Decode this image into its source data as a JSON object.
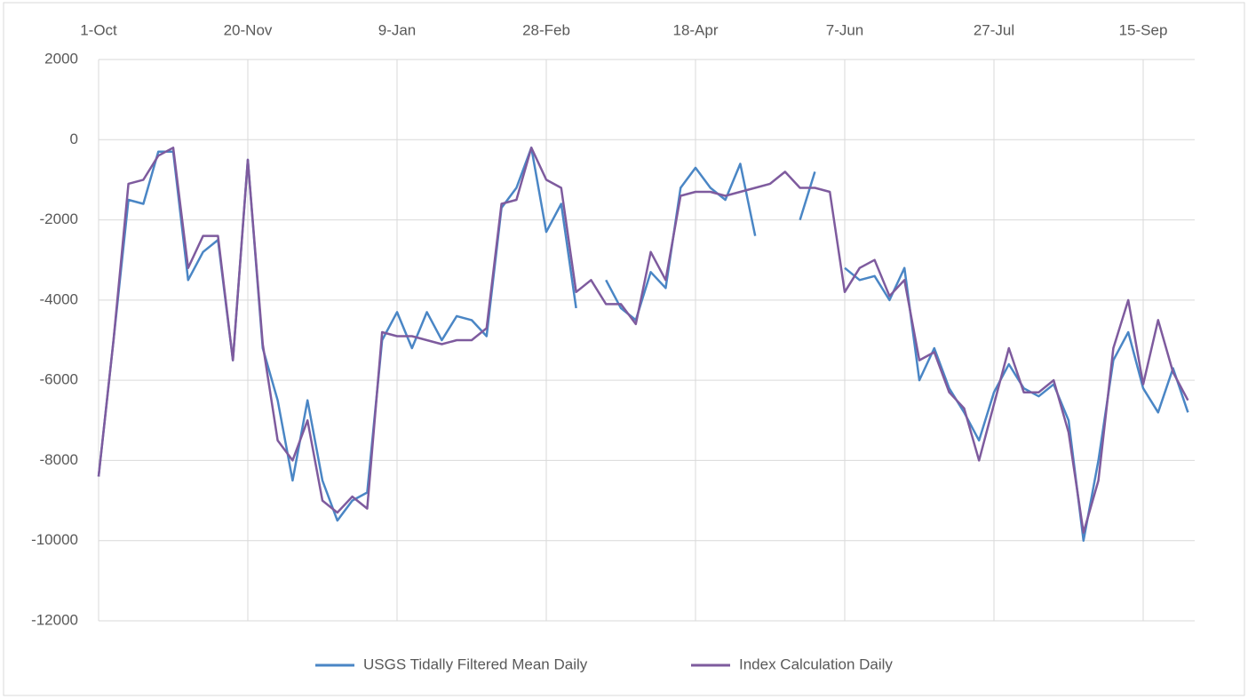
{
  "chart_data": {
    "type": "line",
    "categories": [
      "1-Oct",
      null,
      null,
      null,
      null,
      null,
      null,
      null,
      null,
      null,
      "20-Nov",
      null,
      null,
      null,
      null,
      null,
      null,
      null,
      null,
      null,
      "9-Jan",
      null,
      null,
      null,
      null,
      null,
      null,
      null,
      null,
      null,
      "28-Feb",
      null,
      null,
      null,
      null,
      null,
      null,
      null,
      null,
      null,
      "18-Apr",
      null,
      null,
      null,
      null,
      null,
      null,
      null,
      null,
      null,
      "7-Jun",
      null,
      null,
      null,
      null,
      null,
      null,
      null,
      null,
      null,
      "27-Jul",
      null,
      null,
      null,
      null,
      null,
      null,
      null,
      null,
      null,
      "15-Sep",
      null,
      null,
      null
    ],
    "series": [
      {
        "name": "USGS Tidally Filtered Mean Daily",
        "color": "#4a86c5",
        "values": [
          -8400,
          -5000,
          -1500,
          -1600,
          -300,
          -300,
          -3500,
          -2800,
          -2500,
          -5500,
          -500,
          -5200,
          -6500,
          -8500,
          -6500,
          -8500,
          -9500,
          -9000,
          -8800,
          -5000,
          -4300,
          -5200,
          -4300,
          -5000,
          -4400,
          -4500,
          -4900,
          -1700,
          -1200,
          -200,
          -2300,
          -1600,
          -4200,
          null,
          -3500,
          -4200,
          -4500,
          -3300,
          -3700,
          -1200,
          -700,
          -1200,
          -1500,
          -600,
          -2400,
          null,
          null,
          -2000,
          -800,
          null,
          -3200,
          -3500,
          -3400,
          -4000,
          -3200,
          -6000,
          -5200,
          -6200,
          -6800,
          -7500,
          -6300,
          -5600,
          -6200,
          -6400,
          -6100,
          -7000,
          -10000,
          -8000,
          -5500,
          -4800,
          -6200,
          -6800,
          -5700,
          -6800
        ]
      },
      {
        "name": "Index Calculation Daily",
        "color": "#7e5b9e",
        "values": [
          -8400,
          -5000,
          -1100,
          -1000,
          -400,
          -200,
          -3200,
          -2400,
          -2400,
          -5500,
          -500,
          -5100,
          -7500,
          -8000,
          -7000,
          -9000,
          -9300,
          -8900,
          -9200,
          -4800,
          -4900,
          -4900,
          -5000,
          -5100,
          -5000,
          -5000,
          -4700,
          -1600,
          -1500,
          -200,
          -1000,
          -1200,
          -3800,
          -3500,
          -4100,
          -4100,
          -4600,
          -2800,
          -3500,
          -1400,
          -1300,
          -1300,
          -1400,
          -1300,
          -1200,
          -1100,
          -800,
          -1200,
          -1200,
          -1300,
          -3800,
          -3200,
          -3000,
          -3900,
          -3500,
          -5500,
          -5300,
          -6300,
          -6700,
          -8000,
          -6600,
          -5200,
          -6300,
          -6300,
          -6000,
          -7300,
          -9800,
          -8500,
          -5200,
          -4000,
          -6100,
          -4500,
          -5800,
          -6500
        ]
      }
    ],
    "ylim": [
      -12000,
      2000
    ],
    "yticks": [
      -12000,
      -10000,
      -8000,
      -6000,
      -4000,
      -2000,
      0,
      2000
    ],
    "grid": true,
    "legend": "bottom"
  }
}
